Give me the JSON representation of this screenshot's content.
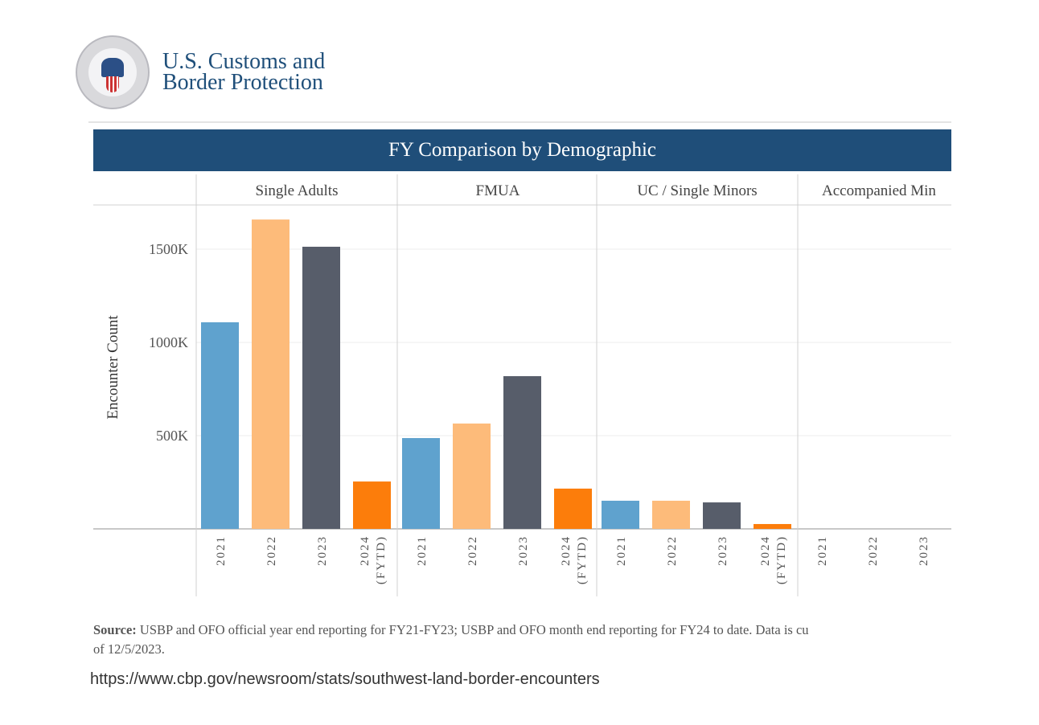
{
  "brand": {
    "line1": "U.S. Customs and",
    "line2": "Border Protection",
    "seal_text": "U.S. Customs and Border Protection - Department of Homeland Security"
  },
  "chart_data": {
    "type": "bar",
    "title": "FY Comparison by Demographic",
    "ylabel": "Encounter Count",
    "xlabel": "",
    "ylim": [
      0,
      1750000
    ],
    "yticks": [
      {
        "value": 500000,
        "label": "500K"
      },
      {
        "value": 1000000,
        "label": "1000K"
      },
      {
        "value": 1500000,
        "label": "1500K"
      }
    ],
    "grid": true,
    "colors": {
      "2021": "#5fa2ce",
      "2022": "#fdbb7a",
      "2023": "#575d6a",
      "2024 (FYTD)": "#fc7d0b"
    },
    "facets": [
      {
        "name": "Single Adults",
        "categories": [
          "2021",
          "2022",
          "2023",
          "2024 (FYTD)"
        ],
        "values": [
          1108000,
          1659000,
          1513000,
          254000
        ]
      },
      {
        "name": "FMUA",
        "categories": [
          "2021",
          "2022",
          "2023",
          "2024 (FYTD)"
        ],
        "values": [
          487000,
          565000,
          819000,
          216000
        ]
      },
      {
        "name": "UC / Single Minors",
        "categories": [
          "2021",
          "2022",
          "2023",
          "2024 (FYTD)"
        ],
        "values": [
          151000,
          151000,
          142000,
          26000
        ]
      },
      {
        "name": "Accompanied Min",
        "categories": [
          "2021",
          "2022",
          "2023"
        ],
        "values": [
          0,
          0,
          0
        ]
      }
    ]
  },
  "footer": {
    "source_label": "Source:",
    "source_text": " USBP and OFO official year end reporting for FY21-FY23; USBP and OFO month end reporting for FY24 to date. Data is cu",
    "source_text2": "of 12/5/2023.",
    "url": "https://www.cbp.gov/newsroom/stats/southwest-land-border-encounters"
  }
}
